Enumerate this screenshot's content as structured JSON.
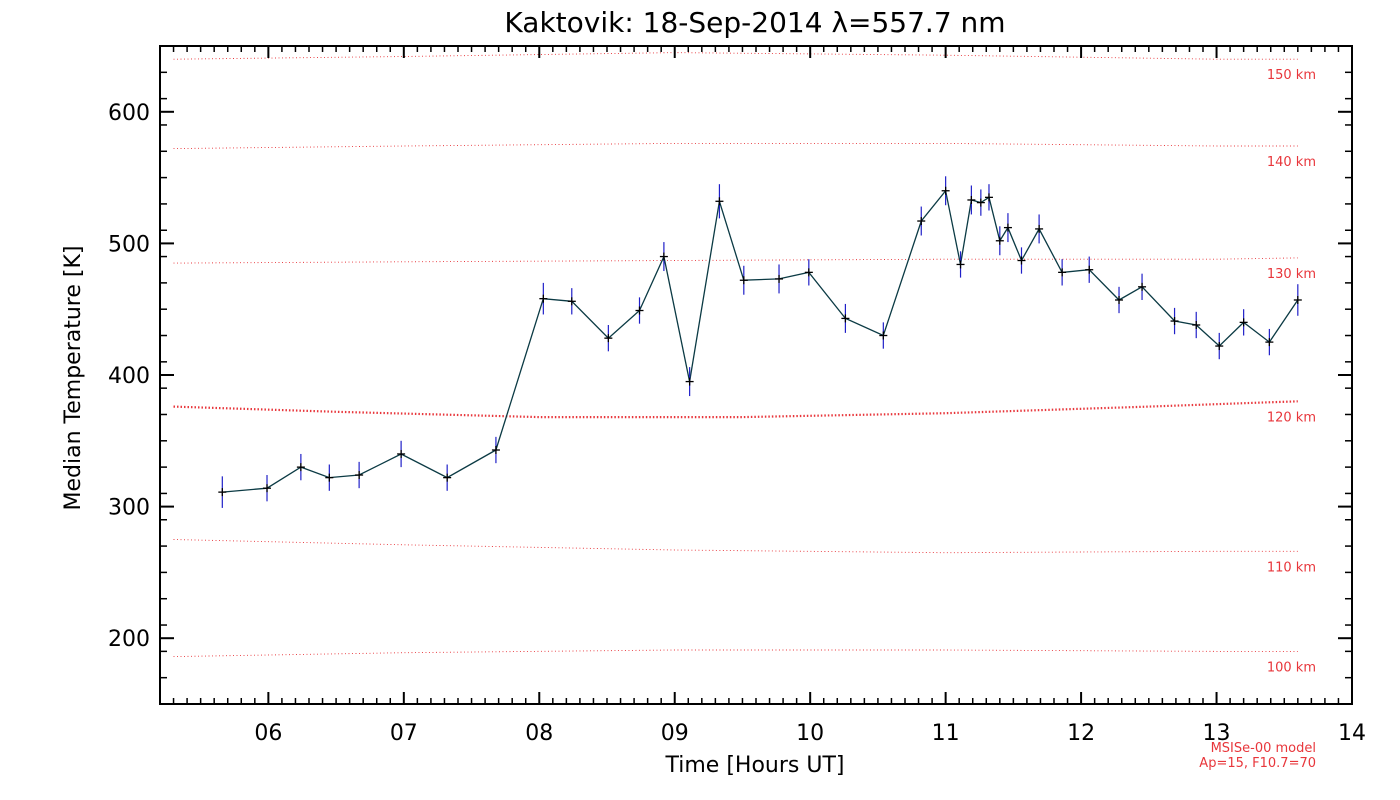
{
  "chart_data": {
    "type": "line",
    "title": "Kaktovik: 18-Sep-2014 λ=557.7 nm",
    "xlabel": "Time [Hours UT]",
    "ylabel": "Median Temperature [K]",
    "xlim": [
      5.2,
      14.0
    ],
    "ylim": [
      150,
      650
    ],
    "x_ticks": [
      6,
      7,
      8,
      9,
      10,
      11,
      12,
      13,
      14
    ],
    "x_tick_labels": [
      "06",
      "07",
      "08",
      "09",
      "10",
      "11",
      "12",
      "13",
      "14"
    ],
    "y_ticks": [
      200,
      300,
      400,
      500,
      600
    ],
    "y_tick_labels": [
      "200",
      "300",
      "400",
      "500",
      "600"
    ],
    "colors": {
      "line": "#0b3a44",
      "error": "#2020c8",
      "marker": "#000000",
      "model": "#e8363b"
    },
    "series": [
      {
        "name": "Median Temperature",
        "x": [
          5.66,
          5.99,
          6.24,
          6.45,
          6.67,
          6.98,
          7.32,
          7.68,
          8.03,
          8.24,
          8.51,
          8.74,
          8.92,
          9.11,
          9.33,
          9.51,
          9.77,
          9.99,
          10.26,
          10.54,
          10.82,
          11.0,
          11.11,
          11.19,
          11.26,
          11.32,
          11.4,
          11.46,
          11.56,
          11.69,
          11.86,
          12.06,
          12.28,
          12.45,
          12.69,
          12.85,
          13.02,
          13.2,
          13.39,
          13.6
        ],
        "y": [
          311,
          314,
          330,
          322,
          324,
          340,
          322,
          343,
          458,
          456,
          428,
          449,
          490,
          395,
          532,
          472,
          473,
          478,
          443,
          430,
          517,
          540,
          484,
          533,
          531,
          535,
          502,
          512,
          487,
          511,
          478,
          480,
          457,
          467,
          441,
          438,
          422,
          440,
          425,
          457
        ],
        "err": [
          12,
          10,
          10,
          10,
          10,
          10,
          10,
          10,
          12,
          10,
          10,
          10,
          11,
          11,
          13,
          11,
          11,
          10,
          11,
          10,
          11,
          11,
          10,
          11,
          10,
          10,
          11,
          11,
          10,
          11,
          10,
          10,
          10,
          10,
          10,
          10,
          10,
          10,
          10,
          12
        ]
      }
    ],
    "model_curves": [
      {
        "label": "150 km",
        "x": [
          5.3,
          7.0,
          9.0,
          11.0,
          13.0,
          13.6
        ],
        "y": [
          640,
          642,
          645,
          643,
          640,
          640
        ],
        "heavy": false
      },
      {
        "label": "140 km",
        "x": [
          5.3,
          7.0,
          9.0,
          11.0,
          13.0,
          13.6
        ],
        "y": [
          572,
          574,
          576,
          576,
          574,
          574
        ],
        "heavy": false
      },
      {
        "label": "130 km",
        "x": [
          5.3,
          7.0,
          9.0,
          11.0,
          13.0,
          13.6
        ],
        "y": [
          485,
          486,
          487,
          488,
          488,
          489
        ],
        "heavy": false
      },
      {
        "label": "120 km",
        "x": [
          5.3,
          6.5,
          8.0,
          9.5,
          11.0,
          12.5,
          13.6
        ],
        "y": [
          376,
          372,
          368,
          368,
          371,
          376,
          380
        ],
        "heavy": true
      },
      {
        "label": "110 km",
        "x": [
          5.3,
          7.0,
          9.0,
          11.0,
          13.0,
          13.6
        ],
        "y": [
          275,
          271,
          267,
          265,
          266,
          266
        ],
        "heavy": false
      },
      {
        "label": "100 km",
        "x": [
          5.3,
          7.0,
          9.0,
          11.0,
          13.0,
          13.6
        ],
        "y": [
          186,
          189,
          191,
          191,
          190,
          190
        ],
        "heavy": false
      }
    ],
    "annotations": [
      "MSISe-00 model",
      "Ap=15, F10.7=70"
    ]
  }
}
